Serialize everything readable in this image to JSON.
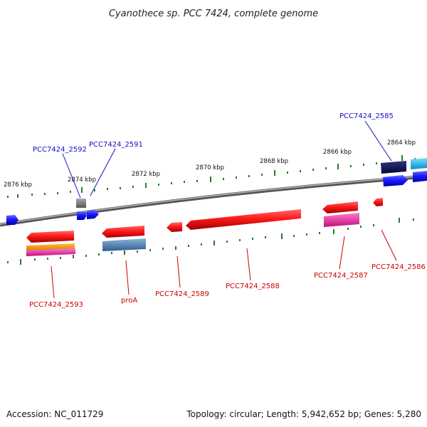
{
  "title": "Cyanothece sp. PCC 7424, complete genome",
  "footer": {
    "accession": "Accession: NC_011729",
    "topology": "Topology: circular; Length: 5,942,652 bp; Genes: 5,280"
  },
  "colors": {
    "forward_label": "#1010c0",
    "reverse_label": "#cc0000",
    "tick": "#2a7a2a",
    "backbone": "#777777"
  },
  "kbp_labels": [
    "2876 kbp",
    "2874 kbp",
    "2872 kbp",
    "2870 kbp",
    "2868 kbp",
    "2866 kbp",
    "2864 kbp"
  ],
  "forward_labels": [
    "PCC7424_2592",
    "PCC7424_2591",
    "PCC7424_2585"
  ],
  "reverse_labels": [
    "PCC7424_2593",
    "proA",
    "PCC7424_2589",
    "PCC7424_2588",
    "PCC7424_2587",
    "PCC7424_2586"
  ]
}
